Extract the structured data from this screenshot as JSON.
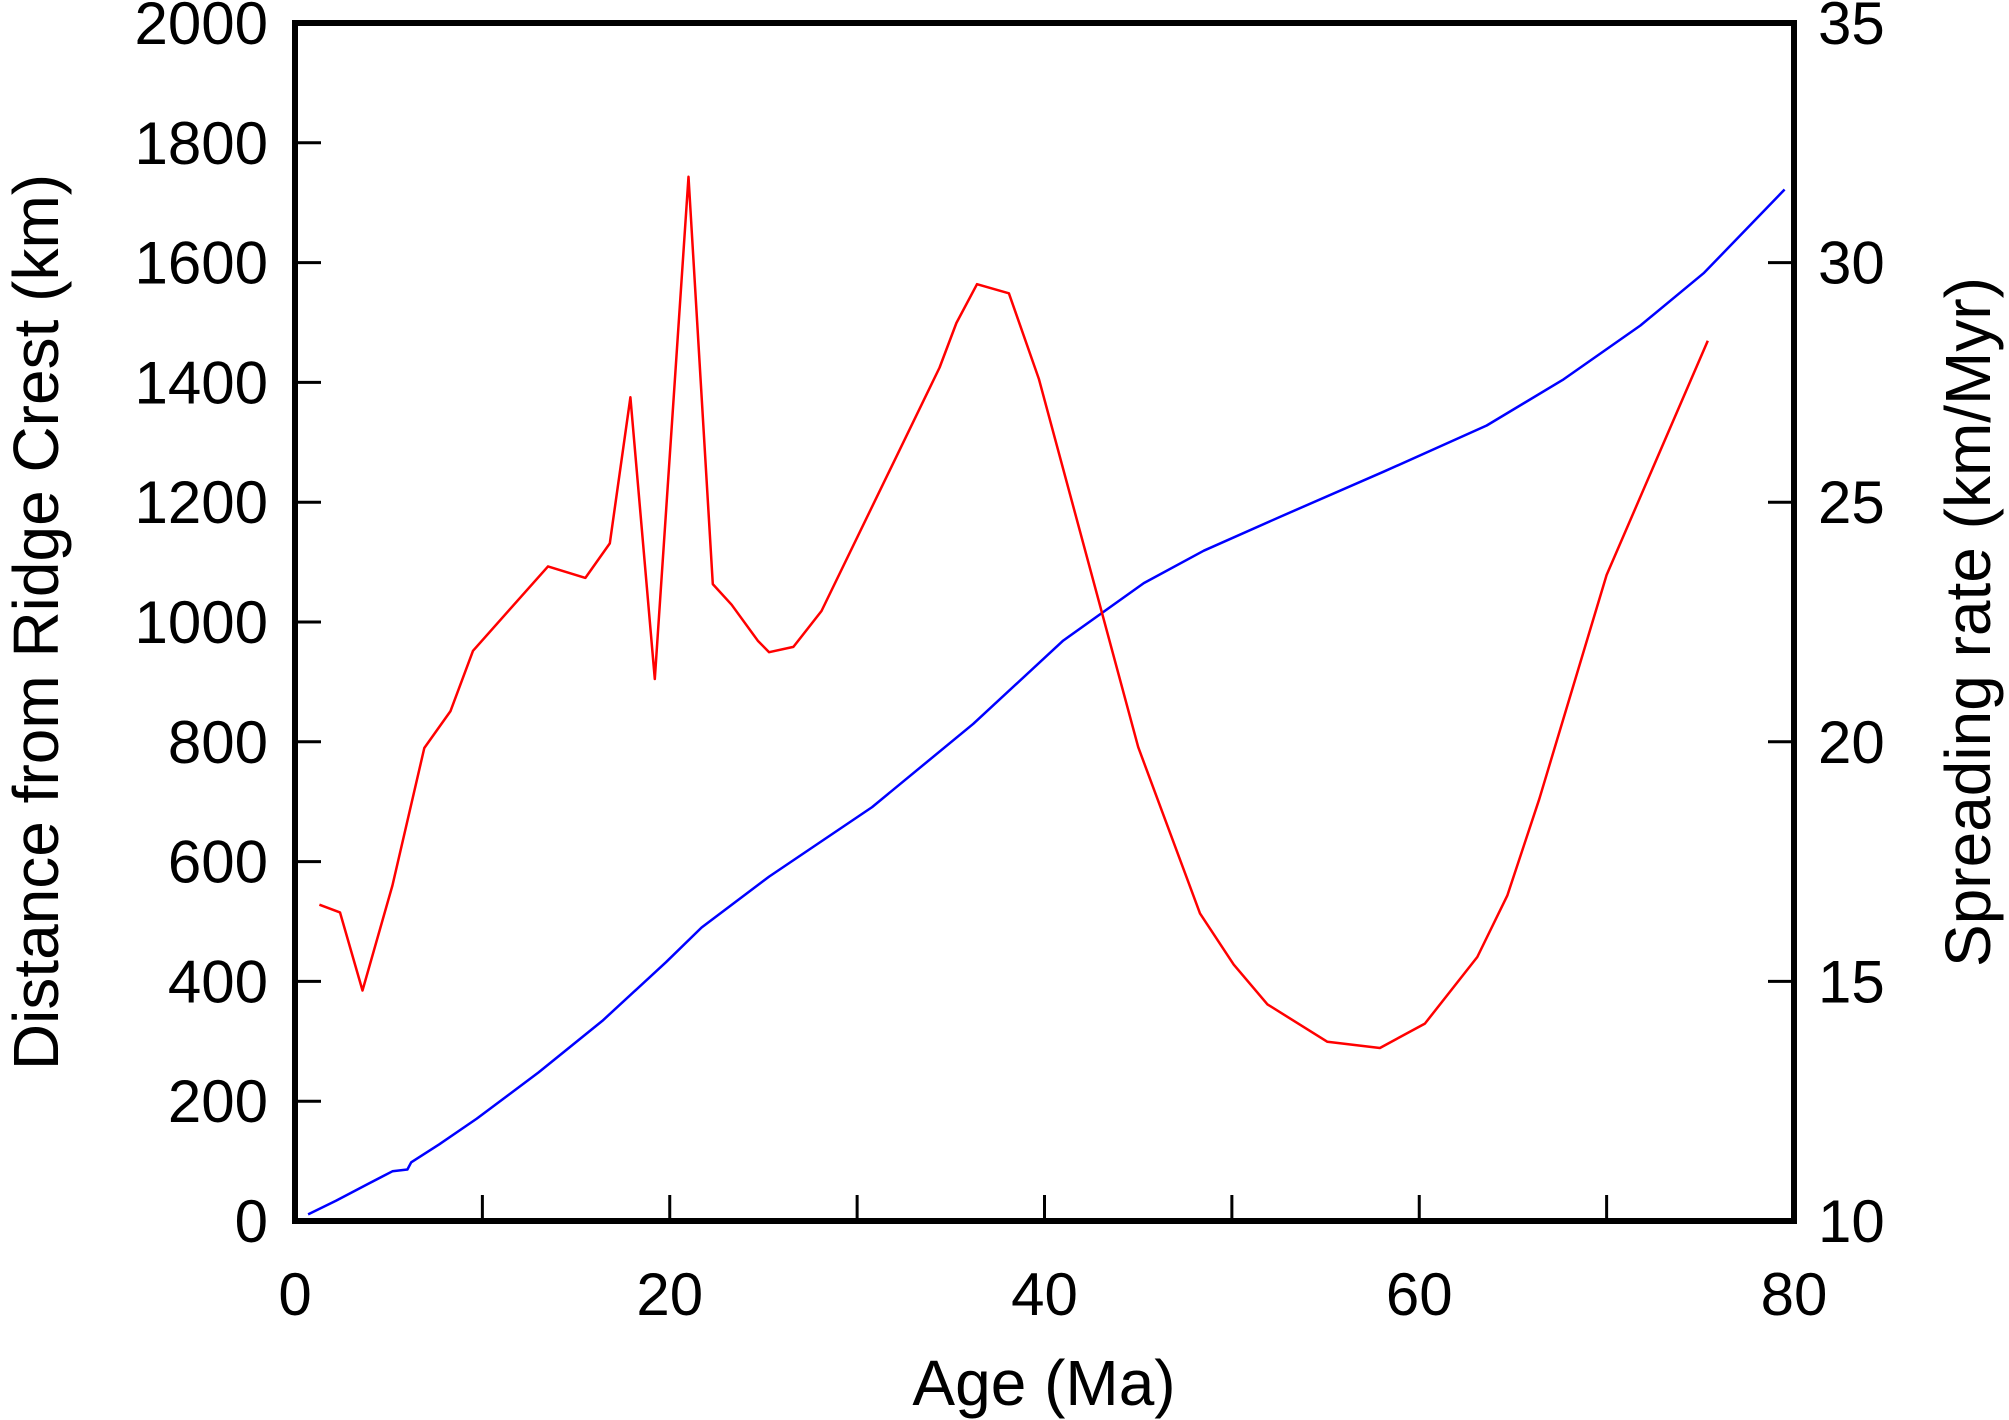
{
  "chart_data": {
    "type": "line",
    "xlabel": "Age (Ma)",
    "ylabel_left": "Distance from Ridge Crest (km)",
    "ylabel_right": "Spreading rate (km/Myr)",
    "xlim": [
      0,
      80
    ],
    "ylim_left": [
      0,
      2000
    ],
    "ylim_right": [
      10,
      35
    ],
    "x_ticks": [
      "0",
      "20",
      "40",
      "60",
      "80"
    ],
    "y_left_ticks": [
      "0",
      "200",
      "400",
      "600",
      "800",
      "1000",
      "1200",
      "1400",
      "1600",
      "1800",
      "2000"
    ],
    "y_right_ticks": [
      "10",
      "15",
      "20",
      "25",
      "30",
      "35"
    ],
    "grid": false,
    "colors": {
      "distance": "#0000ff",
      "rate": "#ff0000",
      "axes": "#000000"
    },
    "series": [
      {
        "axis": "left",
        "color": "#0000ff",
        "x": [
          0.7,
          2.2,
          3.9,
          5.2,
          6.0,
          6.2,
          7.7,
          9.7,
          13.0,
          16.4,
          19.8,
          21.7,
          25.3,
          30.8,
          36.2,
          41.0,
          45.3,
          48.5,
          52.6,
          58.1,
          63.6,
          67.7,
          71.8,
          75.2,
          79.5
        ],
        "y": [
          11,
          34,
          62,
          83,
          86,
          98,
          128,
          171,
          248,
          334,
          432,
          490,
          575,
          691,
          830,
          969,
          1065,
          1119,
          1176,
          1251,
          1328,
          1405,
          1495,
          1583,
          1722
        ]
      },
      {
        "axis": "right",
        "color": "#ff0000",
        "x": [
          1.3,
          2.4,
          3.6,
          5.2,
          6.9,
          8.3,
          9.5,
          13.5,
          15.5,
          16.8,
          17.9,
          19.2,
          21.0,
          22.3,
          23.3,
          24.7,
          25.3,
          26.6,
          28.1,
          34.4,
          35.3,
          36.4,
          38.1,
          39.7,
          45.0,
          48.3,
          50.1,
          51.9,
          55.1,
          57.9,
          60.3,
          63.1,
          64.7,
          66.4,
          70.0,
          75.4
        ],
        "y": [
          16.6,
          16.44,
          14.81,
          17.0,
          19.87,
          20.64,
          21.9,
          23.66,
          23.42,
          24.14,
          27.19,
          21.31,
          31.79,
          23.29,
          22.86,
          22.11,
          21.87,
          21.98,
          22.73,
          27.81,
          28.74,
          29.55,
          29.36,
          27.57,
          19.89,
          16.42,
          15.35,
          14.52,
          13.74,
          13.61,
          14.12,
          15.51,
          16.79,
          18.8,
          23.48,
          28.37
        ]
      }
    ]
  }
}
